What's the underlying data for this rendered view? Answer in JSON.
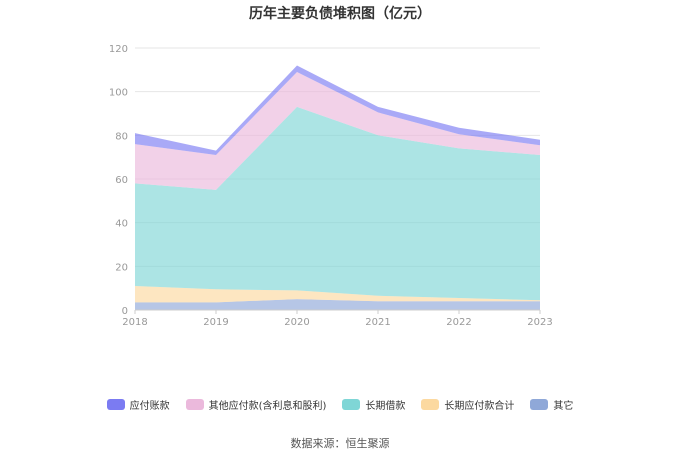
{
  "chart_data": {
    "type": "area",
    "stacked": true,
    "title": "历年主要负债堆积图（亿元）",
    "x": [
      "2018",
      "2019",
      "2020",
      "2021",
      "2022",
      "2023"
    ],
    "ylim": [
      0,
      120
    ],
    "yticks": [
      0,
      20,
      40,
      60,
      80,
      100,
      120
    ],
    "grid": true,
    "legend_position": "bottom",
    "series": [
      {
        "name": "其它",
        "color": "#8fa8d8",
        "values": [
          3.5,
          3.5,
          5,
          4,
          4,
          4
        ]
      },
      {
        "name": "长期应付款合计",
        "color": "#fcd9a0",
        "values": [
          7.5,
          6,
          4,
          2.5,
          1.5,
          0.5
        ]
      },
      {
        "name": "长期借款",
        "color": "#7fd6d6",
        "values": [
          47,
          45.5,
          84,
          73.5,
          68.5,
          66.5
        ]
      },
      {
        "name": "其他应付款(含利息和股利)",
        "color": "#ebb9dc",
        "values": [
          18,
          16,
          16,
          10.5,
          6.5,
          4.5
        ]
      },
      {
        "name": "应付账款",
        "color": "#7b7bf2",
        "values": [
          5,
          2,
          3,
          2.5,
          3,
          2.5
        ]
      }
    ],
    "legend_order": [
      "应付账款",
      "其他应付款(含利息和股利)",
      "长期借款",
      "长期应付款合计",
      "其它"
    ]
  },
  "source_text": "数据来源：恒生聚源"
}
